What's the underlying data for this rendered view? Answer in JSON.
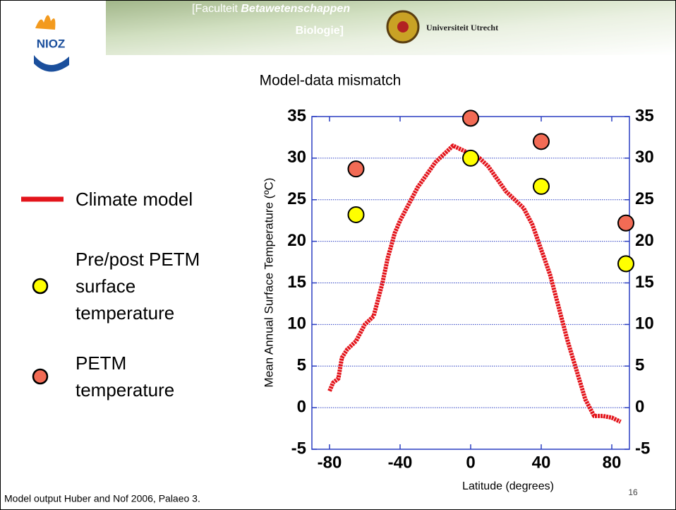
{
  "header": {
    "logo": "NIOZ",
    "faculty": "[Faculteit",
    "faculty_name": "Betawetenschappen",
    "department": "Biologie]",
    "university": "Universiteit Utrecht"
  },
  "footer": "Model output Huber and Nof 2006, Palaeo 3.",
  "slide_number": "16",
  "chart_data": {
    "type": "line",
    "title": "Model-data mismatch",
    "x_label": "Latitude (degrees)",
    "y_label": "Mean Annual  Surface Temperature (ºC)",
    "xlim": [
      -90,
      90
    ],
    "xticks": [
      -80,
      -40,
      0,
      40,
      80
    ],
    "ylim": [
      -5,
      35
    ],
    "yticks": [
      -5,
      0,
      5,
      10,
      15,
      20,
      25,
      30,
      35
    ],
    "y2lim": [
      -5,
      35
    ],
    "y2ticks": [
      -5,
      0,
      5,
      10,
      15,
      20,
      25,
      30,
      35
    ],
    "grid": true,
    "legend": "left",
    "series": [
      {
        "name": "Climate model",
        "color": "#e3141b",
        "style": "line",
        "x": [
          -80,
          -78,
          -75,
          -73,
          -70,
          -65,
          -60,
          -55,
          -50,
          -47,
          -43,
          -40,
          -35,
          -30,
          -25,
          -20,
          -15,
          -10,
          -5,
          0,
          5,
          10,
          15,
          20,
          25,
          30,
          35,
          40,
          45,
          50,
          55,
          60,
          65,
          70,
          75,
          80,
          85
        ],
        "values": [
          2,
          3,
          3.5,
          6,
          7,
          8,
          10,
          11,
          15,
          18,
          21,
          22.5,
          24.5,
          26.5,
          28,
          29.5,
          30.5,
          31.5,
          31,
          30.5,
          30,
          29,
          27.5,
          26,
          25,
          24,
          22,
          19,
          16,
          12,
          8,
          4.5,
          1,
          -1,
          -1,
          -1.2,
          -1.7
        ]
      },
      {
        "name": "Pre/post PETM surface temperature",
        "color": "#ffff00",
        "style": "marker",
        "x": [
          -65,
          0,
          40,
          88
        ],
        "values": [
          23.2,
          30,
          26.6,
          17.3
        ]
      },
      {
        "name": "PETM temperature",
        "color": "#f26b55",
        "style": "marker",
        "x": [
          -65,
          0,
          40,
          88
        ],
        "values": [
          28.7,
          34.8,
          32,
          22.2
        ]
      }
    ]
  }
}
